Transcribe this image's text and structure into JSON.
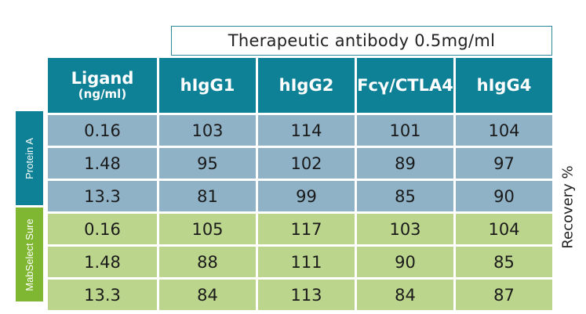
{
  "header": {
    "title": "Therapeutic antibody 0.5mg/ml"
  },
  "columns": {
    "ligand_line1": "Ligand",
    "ligand_line2": "(ng/ml)",
    "c1": "hIgG1",
    "c2": "hIgG2",
    "c3": "Fcγ/CTLA4",
    "c4": "hIgG4"
  },
  "groups": {
    "protein_a": "Protein A",
    "mabselect": "MabSelect Sure"
  },
  "side_axis_label": "Recovery %",
  "rows": [
    {
      "ligand": "0.16",
      "v1": "103",
      "v2": "114",
      "v3": "101",
      "v4": "104"
    },
    {
      "ligand": "1.48",
      "v1": "95",
      "v2": "102",
      "v3": "89",
      "v4": "97"
    },
    {
      "ligand": "13.3",
      "v1": "81",
      "v2": "99",
      "v3": "85",
      "v4": "90"
    },
    {
      "ligand": "0.16",
      "v1": "105",
      "v2": "117",
      "v3": "103",
      "v4": "104"
    },
    {
      "ligand": "1.48",
      "v1": "88",
      "v2": "111",
      "v3": "90",
      "v4": "85"
    },
    {
      "ligand": "13.3",
      "v1": "84",
      "v2": "113",
      "v3": "84",
      "v4": "87"
    }
  ],
  "colors": {
    "header_teal": "#0e8196",
    "protein_a_row": "#8fb2c7",
    "mabselect_row": "#bcd58c",
    "mabselect_side": "#7fb733"
  }
}
